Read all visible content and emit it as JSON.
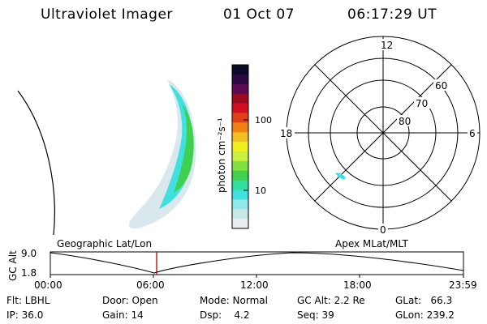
{
  "header": {
    "instrument": "Ultraviolet Imager",
    "date": "01 Oct 07",
    "time": "06:17:29 UT"
  },
  "colorbar": {
    "unit_label": "photon cm⁻²s⁻¹",
    "ticks": [
      "100",
      "10"
    ],
    "colors": [
      "#0a0a2a",
      "#2a0a40",
      "#5a0a50",
      "#9a0a20",
      "#d01020",
      "#e04018",
      "#f08010",
      "#f0c020",
      "#f0f020",
      "#c8f040",
      "#80e040",
      "#40d050",
      "#30e0a0",
      "#40e0e0",
      "#90e8e8",
      "#c8e8e8",
      "#e8eef0"
    ]
  },
  "polar_plot": {
    "labels": {
      "top": "12",
      "left": "18",
      "right": "6",
      "bottom": "0"
    },
    "rings": [
      "60",
      "70",
      "80"
    ]
  },
  "timeline": {
    "left_title": "Geographic Lat/Lon",
    "right_title": "Apex MLat/MLT",
    "y_label": "GC Alt",
    "y_ticks": [
      "9.0",
      "1.8"
    ],
    "x_ticks": [
      "00:00",
      "06:00",
      "12:00",
      "18:00",
      "23:59"
    ],
    "current_marker_color": "#b00000"
  },
  "status": {
    "flt": "Flt: LBHL",
    "ip": "IP: 36.0",
    "door": "Door: Open",
    "gain": "Gain: 14",
    "mode": "Mode: Normal",
    "dsp": "Dsp:    4.2",
    "gc_alt": "GC Alt: 2.2 Re",
    "seq": "Seq: 39",
    "glat": "GLat:   66.3",
    "glon": "GLon: 239.2"
  }
}
